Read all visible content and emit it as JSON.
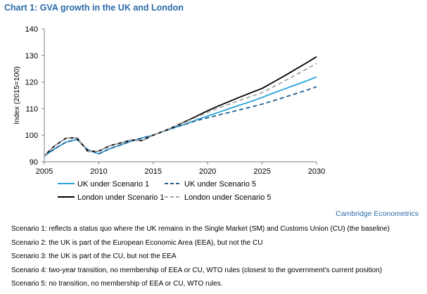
{
  "chart_title": "Chart 1: GVA growth in the UK and London",
  "source_credit": "Cambridge Econometrics",
  "notes": [
    "Scenario 1: reflects a status quo where the UK remains in the Single Market (SM) and Customs Union (CU) (the baseline)",
    "Scenario 2: the UK is part of the European Economic Area (EEA), but not the CU",
    "Scenario 3: the UK is part of the CU, but not the EEA",
    "Scenario 4: two-year transition, no membership of EEA or CU, WTO rules (closest to the government’s current position)",
    "Scenario 5: no transition, no membership of EEA or CU, WTO rules."
  ],
  "colors": {
    "uk_s1": "#29a3dd",
    "uk_s5": "#1f5f93",
    "london_s1": "#000000",
    "london_s5": "#a6a6a6",
    "title": "#2a6aa8"
  },
  "chart_data": {
    "type": "line",
    "title": "",
    "xlabel": "",
    "ylabel": "Index (2015=100)",
    "xlim": [
      2005,
      2030
    ],
    "ylim": [
      90,
      140
    ],
    "xticks": [
      2005,
      2010,
      2015,
      2020,
      2025,
      2030
    ],
    "yticks": [
      90,
      100,
      110,
      120,
      130,
      140
    ],
    "grid": false,
    "legend_position": "bottom",
    "x": [
      2005,
      2006,
      2007,
      2008,
      2009,
      2010,
      2011,
      2012,
      2013,
      2014,
      2015,
      2016,
      2017,
      2018,
      2019,
      2020,
      2021,
      2022,
      2023,
      2024,
      2025,
      2026,
      2027,
      2028,
      2029,
      2030
    ],
    "series": [
      {
        "name": "UK under Scenario 1",
        "color": "#29a3dd",
        "dash": "solid",
        "values": [
          92.2,
          95.0,
          97.4,
          98.4,
          94.5,
          93.0,
          94.9,
          96.3,
          97.8,
          99.0,
          100.0,
          101.5,
          102.9,
          104.2,
          105.8,
          107.2,
          108.6,
          110.0,
          111.4,
          112.7,
          114.2,
          115.8,
          117.3,
          118.8,
          120.3,
          121.9
        ]
      },
      {
        "name": "UK under Scenario 5",
        "color": "#1f5f93",
        "dash": "dashed",
        "values": [
          92.2,
          95.0,
          97.4,
          98.4,
          94.5,
          93.0,
          94.9,
          96.3,
          97.8,
          99.0,
          100.0,
          101.5,
          102.9,
          104.2,
          105.5,
          106.5,
          107.6,
          108.6,
          109.6,
          110.6,
          111.7,
          112.9,
          114.2,
          115.5,
          116.8,
          118.2
        ]
      },
      {
        "name": "London under Scenario 1",
        "color": "#000000",
        "dash": "solid",
        "values": [
          92.3,
          96.2,
          98.9,
          99.0,
          93.9,
          94.0,
          96.0,
          97.1,
          98.2,
          98.0,
          100.0,
          101.6,
          103.3,
          105.2,
          107.2,
          109.2,
          111.0,
          112.7,
          114.4,
          116.0,
          117.6,
          119.9,
          122.2,
          124.6,
          127.0,
          129.5
        ]
      },
      {
        "name": "London under Scenario 5",
        "color": "#a6a6a6",
        "dash": "dashed",
        "values": [
          92.3,
          96.2,
          98.9,
          99.0,
          93.9,
          94.0,
          96.0,
          97.1,
          98.2,
          98.0,
          100.0,
          101.6,
          103.3,
          105.0,
          106.8,
          108.6,
          110.2,
          111.7,
          113.2,
          114.6,
          116.0,
          118.1,
          120.3,
          122.5,
          124.7,
          127.0
        ]
      }
    ]
  }
}
